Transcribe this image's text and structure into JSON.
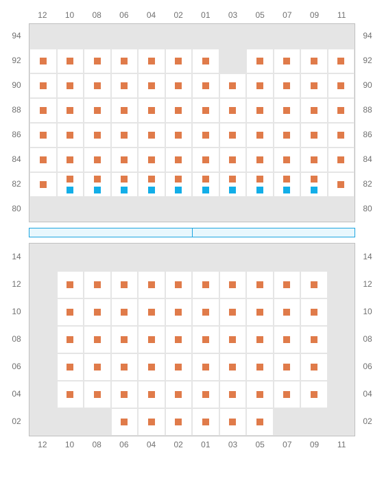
{
  "colors": {
    "orange": "#e07b4a",
    "blue": "#12aee8",
    "grid_bg": "#e5e5e5",
    "grid_border": "#bfbfbf",
    "cell_bg": "#ffffff",
    "label": "#707070",
    "strip_bg": "#e8f7fd",
    "strip_border": "#1ba4e0"
  },
  "columns": [
    "12",
    "10",
    "08",
    "06",
    "04",
    "02",
    "01",
    "03",
    "05",
    "07",
    "09",
    "11"
  ],
  "upper": {
    "row_labels": [
      "94",
      "92",
      "90",
      "88",
      "86",
      "84",
      "82",
      "80"
    ],
    "rows": [
      {
        "y": "94",
        "visible": false,
        "cells": []
      },
      {
        "y": "92",
        "visible": true,
        "cells": [
          {
            "col": "12",
            "type": "orange"
          },
          {
            "col": "10",
            "type": "orange"
          },
          {
            "col": "08",
            "type": "orange"
          },
          {
            "col": "06",
            "type": "orange"
          },
          {
            "col": "04",
            "type": "orange"
          },
          {
            "col": "02",
            "type": "orange"
          },
          {
            "col": "01",
            "type": "orange"
          },
          {
            "col": "03",
            "type": "empty"
          },
          {
            "col": "05",
            "type": "orange"
          },
          {
            "col": "07",
            "type": "orange"
          },
          {
            "col": "09",
            "type": "orange"
          },
          {
            "col": "11",
            "type": "orange"
          }
        ]
      },
      {
        "y": "90",
        "visible": true,
        "cells": [
          {
            "col": "12",
            "type": "orange"
          },
          {
            "col": "10",
            "type": "orange"
          },
          {
            "col": "08",
            "type": "orange"
          },
          {
            "col": "06",
            "type": "orange"
          },
          {
            "col": "04",
            "type": "orange"
          },
          {
            "col": "02",
            "type": "orange"
          },
          {
            "col": "01",
            "type": "orange"
          },
          {
            "col": "03",
            "type": "orange"
          },
          {
            "col": "05",
            "type": "orange"
          },
          {
            "col": "07",
            "type": "orange"
          },
          {
            "col": "09",
            "type": "orange"
          },
          {
            "col": "11",
            "type": "orange"
          }
        ]
      },
      {
        "y": "88",
        "visible": true,
        "cells": [
          {
            "col": "12",
            "type": "orange"
          },
          {
            "col": "10",
            "type": "orange"
          },
          {
            "col": "08",
            "type": "orange"
          },
          {
            "col": "06",
            "type": "orange"
          },
          {
            "col": "04",
            "type": "orange"
          },
          {
            "col": "02",
            "type": "orange"
          },
          {
            "col": "01",
            "type": "orange"
          },
          {
            "col": "03",
            "type": "orange"
          },
          {
            "col": "05",
            "type": "orange"
          },
          {
            "col": "07",
            "type": "orange"
          },
          {
            "col": "09",
            "type": "orange"
          },
          {
            "col": "11",
            "type": "orange"
          }
        ]
      },
      {
        "y": "86",
        "visible": true,
        "cells": [
          {
            "col": "12",
            "type": "orange"
          },
          {
            "col": "10",
            "type": "orange"
          },
          {
            "col": "08",
            "type": "orange"
          },
          {
            "col": "06",
            "type": "orange"
          },
          {
            "col": "04",
            "type": "orange"
          },
          {
            "col": "02",
            "type": "orange"
          },
          {
            "col": "01",
            "type": "orange"
          },
          {
            "col": "03",
            "type": "orange"
          },
          {
            "col": "05",
            "type": "orange"
          },
          {
            "col": "07",
            "type": "orange"
          },
          {
            "col": "09",
            "type": "orange"
          },
          {
            "col": "11",
            "type": "orange"
          }
        ]
      },
      {
        "y": "84",
        "visible": true,
        "cells": [
          {
            "col": "12",
            "type": "orange"
          },
          {
            "col": "10",
            "type": "orange"
          },
          {
            "col": "08",
            "type": "orange"
          },
          {
            "col": "06",
            "type": "orange"
          },
          {
            "col": "04",
            "type": "orange"
          },
          {
            "col": "02",
            "type": "orange"
          },
          {
            "col": "01",
            "type": "orange"
          },
          {
            "col": "03",
            "type": "orange"
          },
          {
            "col": "05",
            "type": "orange"
          },
          {
            "col": "07",
            "type": "orange"
          },
          {
            "col": "09",
            "type": "orange"
          },
          {
            "col": "11",
            "type": "orange"
          }
        ]
      },
      {
        "y": "82",
        "visible": true,
        "cells": [
          {
            "col": "12",
            "type": "orange"
          },
          {
            "col": "10",
            "type": "dual"
          },
          {
            "col": "08",
            "type": "dual"
          },
          {
            "col": "06",
            "type": "dual"
          },
          {
            "col": "04",
            "type": "dual"
          },
          {
            "col": "02",
            "type": "dual"
          },
          {
            "col": "01",
            "type": "dual"
          },
          {
            "col": "03",
            "type": "dual"
          },
          {
            "col": "05",
            "type": "dual"
          },
          {
            "col": "07",
            "type": "dual"
          },
          {
            "col": "09",
            "type": "dual"
          },
          {
            "col": "11",
            "type": "orange"
          }
        ]
      },
      {
        "y": "80",
        "visible": false,
        "cells": []
      }
    ]
  },
  "lower": {
    "row_labels": [
      "14",
      "12",
      "10",
      "08",
      "06",
      "04",
      "02"
    ],
    "rows": [
      {
        "y": "14",
        "visible": false,
        "cells": []
      },
      {
        "y": "12",
        "visible": true,
        "cells": [
          {
            "col": "12",
            "type": "empty"
          },
          {
            "col": "10",
            "type": "orange"
          },
          {
            "col": "08",
            "type": "orange"
          },
          {
            "col": "06",
            "type": "orange"
          },
          {
            "col": "04",
            "type": "orange"
          },
          {
            "col": "02",
            "type": "orange"
          },
          {
            "col": "01",
            "type": "orange"
          },
          {
            "col": "03",
            "type": "orange"
          },
          {
            "col": "05",
            "type": "orange"
          },
          {
            "col": "07",
            "type": "orange"
          },
          {
            "col": "09",
            "type": "orange"
          },
          {
            "col": "11",
            "type": "empty"
          }
        ]
      },
      {
        "y": "10",
        "visible": true,
        "cells": [
          {
            "col": "12",
            "type": "empty"
          },
          {
            "col": "10",
            "type": "orange"
          },
          {
            "col": "08",
            "type": "orange"
          },
          {
            "col": "06",
            "type": "orange"
          },
          {
            "col": "04",
            "type": "orange"
          },
          {
            "col": "02",
            "type": "orange"
          },
          {
            "col": "01",
            "type": "orange"
          },
          {
            "col": "03",
            "type": "orange"
          },
          {
            "col": "05",
            "type": "orange"
          },
          {
            "col": "07",
            "type": "orange"
          },
          {
            "col": "09",
            "type": "orange"
          },
          {
            "col": "11",
            "type": "empty"
          }
        ]
      },
      {
        "y": "08",
        "visible": true,
        "cells": [
          {
            "col": "12",
            "type": "empty"
          },
          {
            "col": "10",
            "type": "orange"
          },
          {
            "col": "08",
            "type": "orange"
          },
          {
            "col": "06",
            "type": "orange"
          },
          {
            "col": "04",
            "type": "orange"
          },
          {
            "col": "02",
            "type": "orange"
          },
          {
            "col": "01",
            "type": "orange"
          },
          {
            "col": "03",
            "type": "orange"
          },
          {
            "col": "05",
            "type": "orange"
          },
          {
            "col": "07",
            "type": "orange"
          },
          {
            "col": "09",
            "type": "orange"
          },
          {
            "col": "11",
            "type": "empty"
          }
        ]
      },
      {
        "y": "06",
        "visible": true,
        "cells": [
          {
            "col": "12",
            "type": "empty"
          },
          {
            "col": "10",
            "type": "orange"
          },
          {
            "col": "08",
            "type": "orange"
          },
          {
            "col": "06",
            "type": "orange"
          },
          {
            "col": "04",
            "type": "orange"
          },
          {
            "col": "02",
            "type": "orange"
          },
          {
            "col": "01",
            "type": "orange"
          },
          {
            "col": "03",
            "type": "orange"
          },
          {
            "col": "05",
            "type": "orange"
          },
          {
            "col": "07",
            "type": "orange"
          },
          {
            "col": "09",
            "type": "orange"
          },
          {
            "col": "11",
            "type": "empty"
          }
        ]
      },
      {
        "y": "04",
        "visible": true,
        "cells": [
          {
            "col": "12",
            "type": "empty"
          },
          {
            "col": "10",
            "type": "orange"
          },
          {
            "col": "08",
            "type": "orange"
          },
          {
            "col": "06",
            "type": "orange"
          },
          {
            "col": "04",
            "type": "orange"
          },
          {
            "col": "02",
            "type": "orange"
          },
          {
            "col": "01",
            "type": "orange"
          },
          {
            "col": "03",
            "type": "orange"
          },
          {
            "col": "05",
            "type": "orange"
          },
          {
            "col": "07",
            "type": "orange"
          },
          {
            "col": "09",
            "type": "orange"
          },
          {
            "col": "11",
            "type": "empty"
          }
        ]
      },
      {
        "y": "02",
        "visible": true,
        "cells": [
          {
            "col": "12",
            "type": "empty"
          },
          {
            "col": "10",
            "type": "empty"
          },
          {
            "col": "08",
            "type": "empty"
          },
          {
            "col": "06",
            "type": "orange"
          },
          {
            "col": "04",
            "type": "orange"
          },
          {
            "col": "02",
            "type": "orange"
          },
          {
            "col": "01",
            "type": "orange"
          },
          {
            "col": "03",
            "type": "orange"
          },
          {
            "col": "05",
            "type": "orange"
          },
          {
            "col": "07",
            "type": "empty"
          },
          {
            "col": "09",
            "type": "empty"
          },
          {
            "col": "11",
            "type": "empty"
          }
        ]
      }
    ]
  }
}
